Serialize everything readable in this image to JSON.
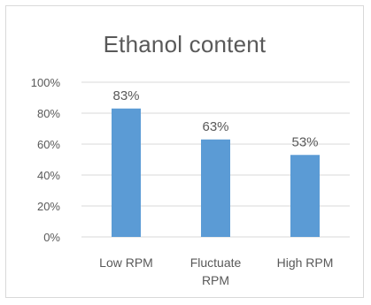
{
  "chart_data": {
    "type": "bar",
    "title": "Ethanol content",
    "categories": [
      [
        "Low RPM"
      ],
      [
        "Fluctuate",
        "RPM"
      ],
      [
        "High RPM"
      ]
    ],
    "values": [
      83,
      63,
      53
    ],
    "data_labels": [
      "83%",
      "63%",
      "53%"
    ],
    "yticks": [
      "0%",
      "20%",
      "40%",
      "60%",
      "80%",
      "100%"
    ],
    "ylim": [
      0,
      100
    ],
    "grid": true,
    "legend": "none",
    "colors": {
      "bar": "#5b9bd5",
      "grid": "#d9d9d9",
      "text": "#595959",
      "frame": "#d9d9d9"
    }
  }
}
